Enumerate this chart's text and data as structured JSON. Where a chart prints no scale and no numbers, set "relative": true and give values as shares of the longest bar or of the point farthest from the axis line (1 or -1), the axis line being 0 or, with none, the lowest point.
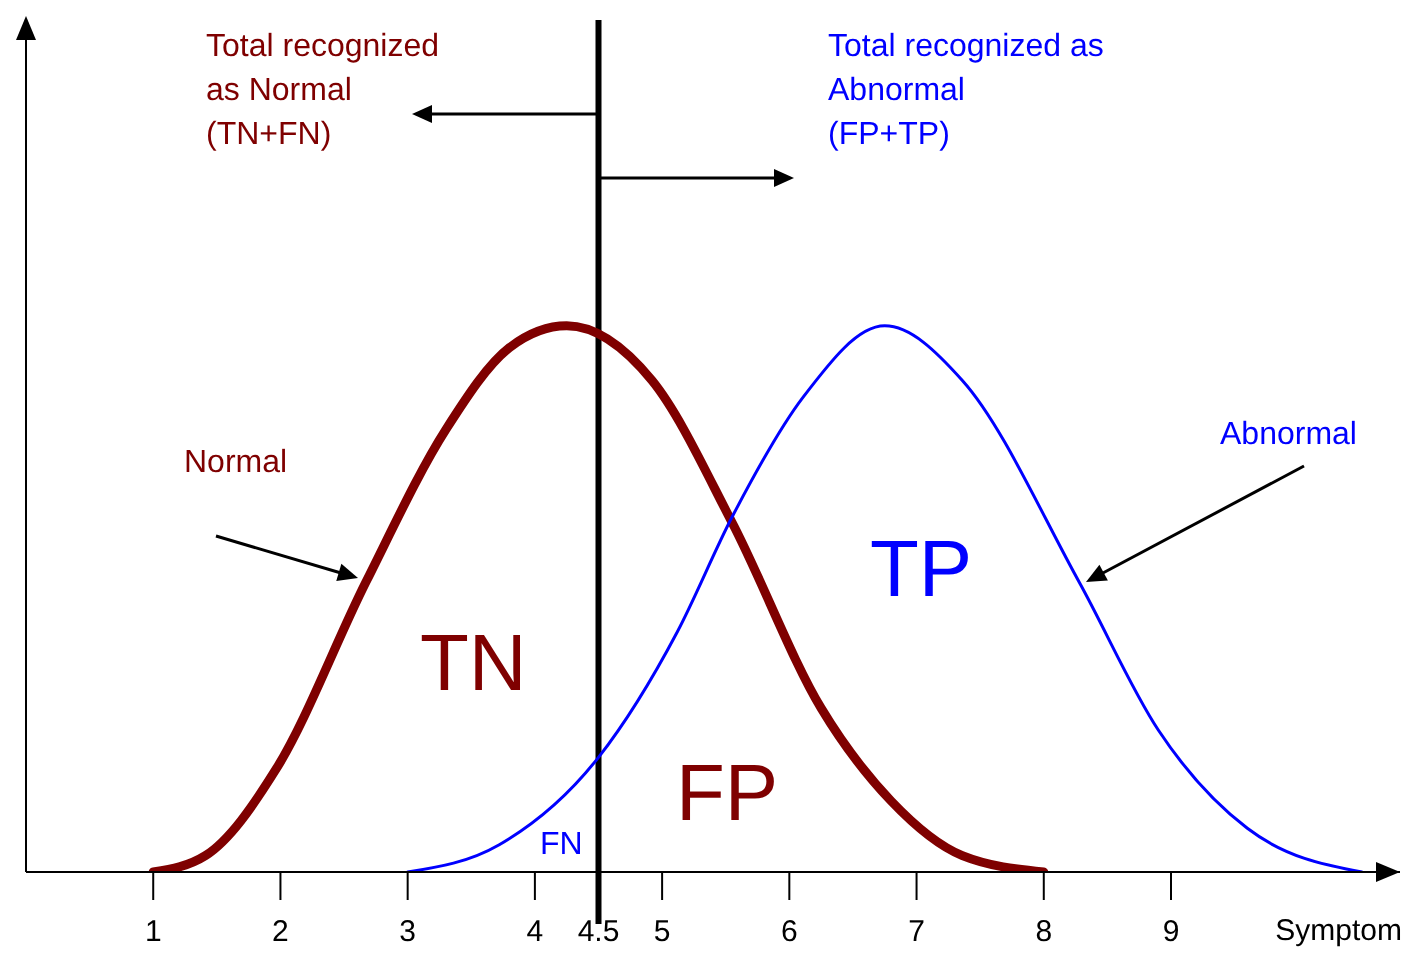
{
  "chart_data": {
    "type": "line",
    "relative": true,
    "xlabel": "Symptom",
    "xlim": [
      0,
      10.8
    ],
    "xticks": [
      1,
      2,
      3,
      4,
      4.5,
      5,
      6,
      7,
      8,
      9
    ],
    "marker": "none",
    "line_style": "solid",
    "series": [
      {
        "color": "#7f0000",
        "x": [
          1,
          1.41,
          1.97,
          2.67,
          3.3,
          3.8,
          4.25,
          4.92,
          5.55,
          6.25,
          6.8,
          7.36,
          8
        ],
        "values": [
          0,
          0.03,
          0.19,
          0.53,
          0.81,
          0.96,
          1,
          0.9,
          0.64,
          0.3,
          0.13,
          0.03,
          0
        ]
      },
      {
        "color": "#0000ff",
        "x": [
          3,
          3.72,
          4.5,
          5.12,
          5.55,
          6.11,
          6.75,
          7.36,
          8.28,
          8.9,
          9.6,
          10.5
        ],
        "values": [
          0,
          0.05,
          0.21,
          0.44,
          0.65,
          0.87,
          1,
          0.9,
          0.53,
          0.26,
          0.08,
          0
        ]
      }
    ],
    "ref_lines": [
      {
        "axis": "x",
        "value": 4.5,
        "color": "#000000"
      }
    ],
    "annotations": [
      "Total recognized\nas Normal\n(TN+FN)",
      "Total recognized as\nAbnormal\n(FP+TP)",
      "Normal",
      "Abnormal",
      "TN",
      "FP",
      "TP",
      "FN"
    ]
  }
}
